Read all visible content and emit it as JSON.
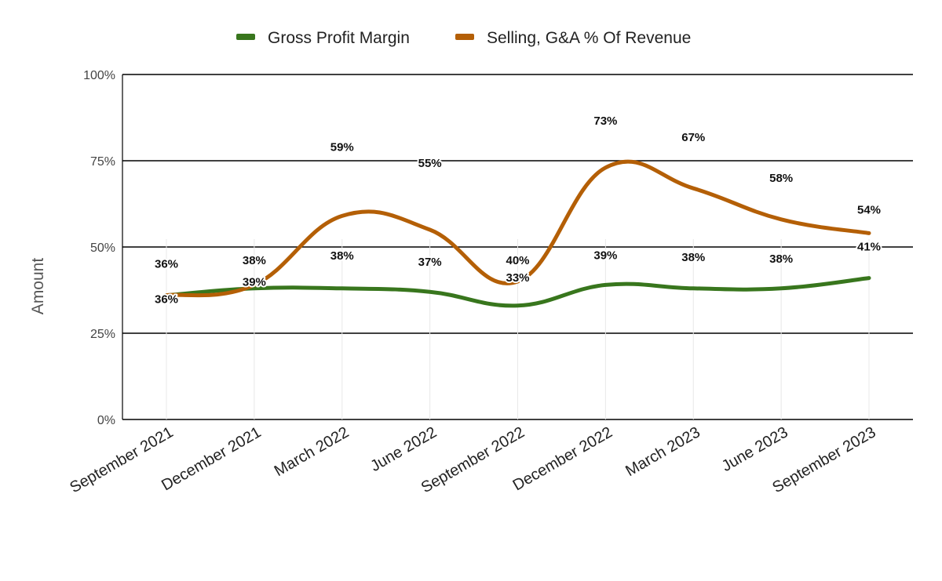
{
  "chart_data": {
    "type": "line",
    "categories": [
      "September 2021",
      "December 2021",
      "March 2022",
      "June 2022",
      "September 2022",
      "December 2022",
      "March 2023",
      "June 2023",
      "September 2023"
    ],
    "series": [
      {
        "name": "Gross Profit Margin",
        "color": "#38761d",
        "values": [
          36,
          38,
          38,
          37,
          33,
          39,
          38,
          38,
          41
        ],
        "labels": [
          "36%",
          "38%",
          "38%",
          "37%",
          "33%",
          "39%",
          "38%",
          "38%",
          "41%"
        ]
      },
      {
        "name": "Selling, G&A % Of Revenue",
        "color": "#b45f06",
        "values": [
          36,
          39,
          59,
          55,
          40,
          73,
          67,
          58,
          54
        ],
        "labels": [
          "36%",
          "39%",
          "59%",
          "55%",
          "40%",
          "73%",
          "67%",
          "58%",
          "54%"
        ]
      }
    ],
    "ylabel": "Amount",
    "yticks": [
      "0%",
      "25%",
      "50%",
      "75%",
      "100%"
    ],
    "ytick_values": [
      0,
      25,
      50,
      75,
      100
    ],
    "ylim": [
      0,
      100
    ],
    "grid": true,
    "legend_position": "top"
  }
}
